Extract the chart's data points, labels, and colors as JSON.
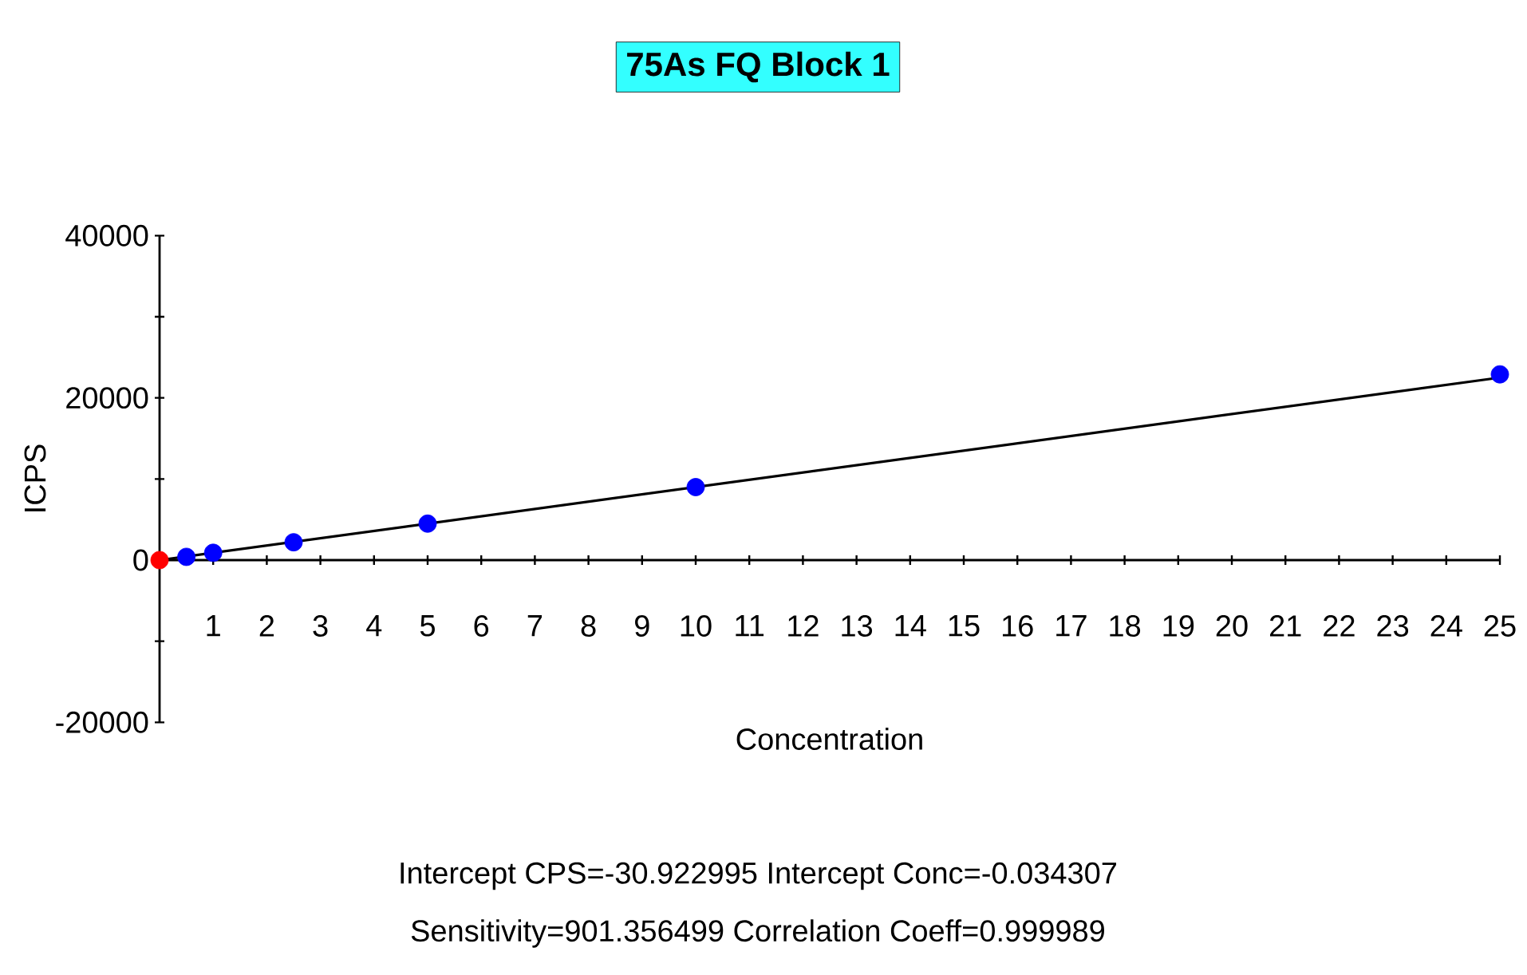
{
  "chart_data": {
    "type": "line",
    "title": "75As FQ Block 1",
    "xlabel": "Concentration",
    "ylabel": "ICPS",
    "annotations": [
      "Intercept CPS=-30.922995  Intercept Conc=-0.034307",
      "Sensitivity=901.356499  Correlation Coeff=0.999989"
    ],
    "grid": false,
    "xlim": [
      0,
      25
    ],
    "ylim": [
      -20000,
      40000
    ],
    "xticks": [
      1,
      2,
      3,
      4,
      5,
      6,
      7,
      8,
      9,
      10,
      11,
      12,
      13,
      14,
      15,
      16,
      17,
      18,
      19,
      20,
      21,
      22,
      23,
      24,
      25
    ],
    "yticks": [
      -20000,
      {
        "value": -10000,
        "label": null
      },
      0,
      {
        "value": 10000,
        "label": null
      },
      20000,
      {
        "value": 30000,
        "label": null
      },
      40000
    ],
    "series": [
      {
        "x": [
          0,
          25
        ],
        "values": [
          0,
          22500
        ],
        "color": "#000000"
      },
      {
        "type": "scatter",
        "marker": "circle",
        "x": [
          0,
          0.5,
          1,
          2.5,
          5,
          10,
          25
        ],
        "values": [
          0,
          400,
          900,
          2200,
          4500,
          9000,
          22900
        ],
        "colors": [
          "#ff0000",
          "#0000ff",
          "#0000ff",
          "#0000ff",
          "#0000ff",
          "#0000ff",
          "#0000ff"
        ]
      }
    ]
  }
}
